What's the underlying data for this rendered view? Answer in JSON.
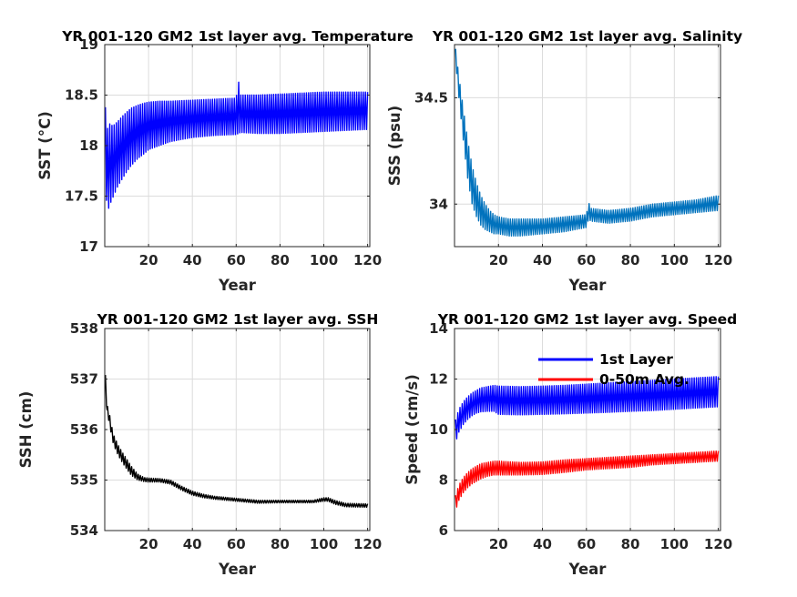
{
  "chart_data": [
    {
      "type": "line",
      "title": "YR 001-120 GM2 1st layer avg. Temperature",
      "xlabel": "Year",
      "ylabel": "SST (°C)",
      "xlim": [
        0,
        121
      ],
      "ylim": [
        17,
        19
      ],
      "xticks": [
        20,
        40,
        60,
        80,
        100,
        120
      ],
      "yticks": [
        17,
        17.5,
        18,
        18.5,
        19
      ],
      "ytick_labels": [
        "17",
        "17.5",
        "18",
        "18.5",
        "19"
      ],
      "grid": true,
      "series": [
        {
          "color": "#0000ff",
          "x": [
            0.3,
            1,
            2,
            3,
            4,
            5,
            6,
            8,
            10,
            12,
            15,
            18,
            20,
            25,
            30,
            40,
            50,
            60,
            61,
            62,
            70,
            80,
            90,
            100,
            110,
            120
          ],
          "upper": [
            18.38,
            18.15,
            18.22,
            18.2,
            18.2,
            18.22,
            18.24,
            18.29,
            18.33,
            18.37,
            18.4,
            18.42,
            18.43,
            18.44,
            18.44,
            18.45,
            18.46,
            18.47,
            18.65,
            18.5,
            18.5,
            18.51,
            18.52,
            18.53,
            18.53,
            18.53
          ],
          "lower": [
            17.85,
            17.3,
            17.4,
            17.45,
            17.5,
            17.55,
            17.6,
            17.67,
            17.74,
            17.8,
            17.87,
            17.92,
            17.96,
            18.0,
            18.04,
            18.08,
            18.1,
            18.11,
            18.12,
            18.13,
            18.12,
            18.12,
            18.13,
            18.14,
            18.15,
            18.16
          ]
        }
      ]
    },
    {
      "type": "line",
      "title": "YR 001-120 GM2 1st layer avg. Salinity",
      "xlabel": "Year",
      "ylabel": "SSS (psu)",
      "xlim": [
        0,
        121
      ],
      "ylim": [
        33.8,
        34.75
      ],
      "xticks": [
        20,
        40,
        60,
        80,
        100,
        120
      ],
      "yticks": [
        34,
        34.5
      ],
      "ytick_labels": [
        "34",
        "34.5"
      ],
      "grid": true,
      "series": [
        {
          "color": "#0072bd",
          "x": [
            0.5,
            2,
            4,
            6,
            8,
            10,
            12,
            14,
            16,
            18,
            20,
            25,
            30,
            40,
            50,
            60,
            61,
            62,
            70,
            80,
            90,
            100,
            110,
            120
          ],
          "upper": [
            34.73,
            34.6,
            34.45,
            34.3,
            34.18,
            34.1,
            34.04,
            34.0,
            33.97,
            33.95,
            33.94,
            33.93,
            33.93,
            33.93,
            33.94,
            33.95,
            34.01,
            33.98,
            33.97,
            33.98,
            34.0,
            34.01,
            34.02,
            34.04
          ],
          "lower": [
            34.67,
            34.5,
            34.3,
            34.12,
            34.0,
            33.94,
            33.9,
            33.88,
            33.87,
            33.86,
            33.86,
            33.85,
            33.85,
            33.86,
            33.87,
            33.89,
            33.93,
            33.92,
            33.91,
            33.92,
            33.94,
            33.95,
            33.96,
            33.97
          ]
        }
      ]
    },
    {
      "type": "line",
      "title": "YR 001-120 GM2 1st layer avg. SSH",
      "xlabel": "Year",
      "ylabel": "SSH (cm)",
      "xlim": [
        0,
        121
      ],
      "ylim": [
        534,
        538
      ],
      "xticks": [
        20,
        40,
        60,
        80,
        100,
        120
      ],
      "yticks": [
        534,
        535,
        536,
        537,
        538
      ],
      "ytick_labels": [
        "534",
        "535",
        "536",
        "537",
        "538"
      ],
      "grid": true,
      "series": [
        {
          "color": "#000000",
          "x": [
            0.3,
            1,
            2,
            3,
            4,
            6,
            8,
            10,
            12,
            15,
            18,
            20,
            25,
            30,
            35,
            40,
            45,
            50,
            60,
            70,
            80,
            90,
            95,
            100,
            102,
            105,
            110,
            120
          ],
          "upper": [
            537.08,
            536.5,
            536.35,
            536.1,
            535.9,
            535.7,
            535.55,
            535.42,
            535.28,
            535.12,
            535.05,
            535.04,
            535.03,
            535.0,
            534.88,
            534.78,
            534.72,
            534.68,
            534.64,
            534.6,
            534.6,
            534.6,
            534.6,
            534.65,
            534.65,
            534.6,
            534.54,
            534.53
          ],
          "lower": [
            536.9,
            536.3,
            536.15,
            535.9,
            535.7,
            535.5,
            535.35,
            535.22,
            535.1,
            535.0,
            534.97,
            534.96,
            534.96,
            534.92,
            534.8,
            534.7,
            534.65,
            534.62,
            534.58,
            534.54,
            534.55,
            534.55,
            534.55,
            534.58,
            534.58,
            534.52,
            534.47,
            534.46
          ]
        }
      ]
    },
    {
      "type": "line",
      "title": "YR 001-120 GM2 1st layer avg. Speed",
      "xlabel": "Year",
      "ylabel": "Speed (cm/s)",
      "xlim": [
        0,
        121
      ],
      "ylim": [
        6,
        14
      ],
      "xticks": [
        20,
        40,
        60,
        80,
        100,
        120
      ],
      "yticks": [
        6,
        8,
        10,
        12,
        14
      ],
      "ytick_labels": [
        "6",
        "8",
        "10",
        "12",
        "14"
      ],
      "grid": true,
      "legend": "top-right",
      "series": [
        {
          "name": "1st Layer",
          "color": "#0000ff",
          "x": [
            0.5,
            2,
            4,
            6,
            8,
            10,
            12,
            15,
            18,
            20,
            30,
            40,
            50,
            60,
            70,
            80,
            90,
            100,
            110,
            120
          ],
          "upper": [
            10.4,
            10.8,
            11.1,
            11.3,
            11.45,
            11.55,
            11.65,
            11.7,
            11.75,
            11.72,
            11.7,
            11.72,
            11.75,
            11.8,
            11.85,
            11.9,
            11.95,
            12.0,
            12.05,
            12.1
          ],
          "lower": [
            9.5,
            9.9,
            10.2,
            10.4,
            10.55,
            10.65,
            10.7,
            10.72,
            10.72,
            10.6,
            10.58,
            10.6,
            10.62,
            10.65,
            10.68,
            10.72,
            10.75,
            10.8,
            10.85,
            10.9
          ]
        },
        {
          "name": "0-50m Avg.",
          "color": "#ff0000",
          "x": [
            0.5,
            2,
            4,
            6,
            8,
            10,
            12,
            15,
            18,
            20,
            30,
            40,
            50,
            60,
            70,
            80,
            90,
            100,
            110,
            120
          ],
          "upper": [
            7.4,
            7.8,
            8.1,
            8.3,
            8.45,
            8.55,
            8.65,
            8.7,
            8.75,
            8.75,
            8.7,
            8.72,
            8.8,
            8.85,
            8.9,
            8.95,
            9.0,
            9.05,
            9.1,
            9.15
          ],
          "lower": [
            6.8,
            7.2,
            7.5,
            7.7,
            7.85,
            7.95,
            8.05,
            8.15,
            8.2,
            8.2,
            8.2,
            8.22,
            8.3,
            8.4,
            8.45,
            8.5,
            8.6,
            8.65,
            8.7,
            8.75
          ]
        }
      ]
    }
  ]
}
